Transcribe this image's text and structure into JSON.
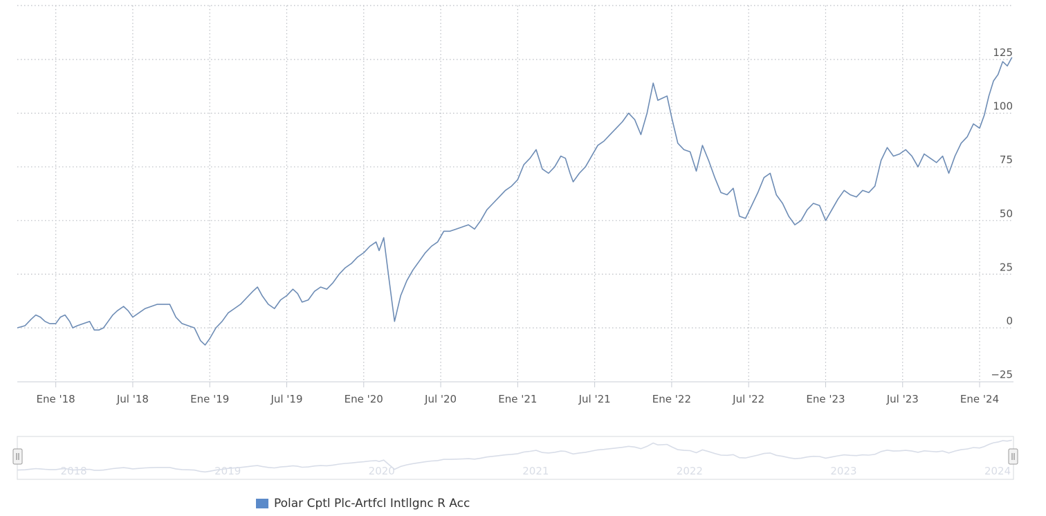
{
  "chart_data": {
    "type": "line",
    "title": "",
    "xlabel": "",
    "ylabel": "",
    "ylim": [
      -25,
      140
    ],
    "y_ticks": [
      -25,
      0,
      25,
      50,
      75,
      100,
      125
    ],
    "x_ticks": [
      {
        "label": "Ene '18",
        "t": 2018.0
      },
      {
        "label": "Jul '18",
        "t": 2018.5
      },
      {
        "label": "Ene '19",
        "t": 2019.0
      },
      {
        "label": "Jul '19",
        "t": 2019.5
      },
      {
        "label": "Ene '20",
        "t": 2020.0
      },
      {
        "label": "Jul '20",
        "t": 2020.5
      },
      {
        "label": "Ene '21",
        "t": 2021.0
      },
      {
        "label": "Jul '21",
        "t": 2021.5
      },
      {
        "label": "Ene '22",
        "t": 2022.0
      },
      {
        "label": "Jul '22",
        "t": 2022.5
      },
      {
        "label": "Ene '23",
        "t": 2023.0
      },
      {
        "label": "Jul '23",
        "t": 2023.5
      },
      {
        "label": "Ene '24",
        "t": 2024.0
      }
    ],
    "x_range": [
      2017.75,
      2024.22
    ],
    "navigator_labels": [
      "2018",
      "2019",
      "2020",
      "2021",
      "2022",
      "2023",
      "2024"
    ],
    "grid": true,
    "legend_position": "bottom-left",
    "series": [
      {
        "name": "Polar Cptl Plc-Artfcl Intllgnc R Acc",
        "color": "#6d8cb5",
        "points": [
          [
            2017.75,
            0
          ],
          [
            2017.8,
            1
          ],
          [
            2017.84,
            4
          ],
          [
            2017.87,
            6
          ],
          [
            2017.9,
            5
          ],
          [
            2017.93,
            3
          ],
          [
            2017.96,
            2
          ],
          [
            2018.0,
            2
          ],
          [
            2018.03,
            5
          ],
          [
            2018.06,
            6
          ],
          [
            2018.09,
            3
          ],
          [
            2018.11,
            0
          ],
          [
            2018.14,
            1
          ],
          [
            2018.18,
            2
          ],
          [
            2018.22,
            3
          ],
          [
            2018.25,
            -1
          ],
          [
            2018.28,
            -1
          ],
          [
            2018.31,
            0
          ],
          [
            2018.34,
            3
          ],
          [
            2018.37,
            6
          ],
          [
            2018.4,
            8
          ],
          [
            2018.44,
            10
          ],
          [
            2018.47,
            8
          ],
          [
            2018.5,
            5
          ],
          [
            2018.54,
            7
          ],
          [
            2018.58,
            9
          ],
          [
            2018.62,
            10
          ],
          [
            2018.66,
            11
          ],
          [
            2018.7,
            11
          ],
          [
            2018.74,
            11
          ],
          [
            2018.78,
            5
          ],
          [
            2018.82,
            2
          ],
          [
            2018.86,
            1
          ],
          [
            2018.9,
            0
          ],
          [
            2018.94,
            -6
          ],
          [
            2018.97,
            -8
          ],
          [
            2019.0,
            -5
          ],
          [
            2019.04,
            0
          ],
          [
            2019.08,
            3
          ],
          [
            2019.12,
            7
          ],
          [
            2019.16,
            9
          ],
          [
            2019.2,
            11
          ],
          [
            2019.24,
            14
          ],
          [
            2019.28,
            17
          ],
          [
            2019.31,
            19
          ],
          [
            2019.34,
            15
          ],
          [
            2019.38,
            11
          ],
          [
            2019.42,
            9
          ],
          [
            2019.46,
            13
          ],
          [
            2019.5,
            15
          ],
          [
            2019.54,
            18
          ],
          [
            2019.57,
            16
          ],
          [
            2019.6,
            12
          ],
          [
            2019.64,
            13
          ],
          [
            2019.68,
            17
          ],
          [
            2019.72,
            19
          ],
          [
            2019.76,
            18
          ],
          [
            2019.8,
            21
          ],
          [
            2019.84,
            25
          ],
          [
            2019.88,
            28
          ],
          [
            2019.92,
            30
          ],
          [
            2019.96,
            33
          ],
          [
            2020.0,
            35
          ],
          [
            2020.04,
            38
          ],
          [
            2020.08,
            40
          ],
          [
            2020.1,
            36
          ],
          [
            2020.13,
            42
          ],
          [
            2020.16,
            25
          ],
          [
            2020.2,
            3
          ],
          [
            2020.24,
            15
          ],
          [
            2020.28,
            22
          ],
          [
            2020.32,
            27
          ],
          [
            2020.36,
            31
          ],
          [
            2020.4,
            35
          ],
          [
            2020.44,
            38
          ],
          [
            2020.48,
            40
          ],
          [
            2020.52,
            45
          ],
          [
            2020.56,
            45
          ],
          [
            2020.6,
            46
          ],
          [
            2020.64,
            47
          ],
          [
            2020.68,
            48
          ],
          [
            2020.72,
            46
          ],
          [
            2020.76,
            50
          ],
          [
            2020.8,
            55
          ],
          [
            2020.84,
            58
          ],
          [
            2020.88,
            61
          ],
          [
            2020.92,
            64
          ],
          [
            2020.96,
            66
          ],
          [
            2021.0,
            69
          ],
          [
            2021.04,
            76
          ],
          [
            2021.08,
            79
          ],
          [
            2021.12,
            83
          ],
          [
            2021.16,
            74
          ],
          [
            2021.2,
            72
          ],
          [
            2021.24,
            75
          ],
          [
            2021.28,
            80
          ],
          [
            2021.31,
            79
          ],
          [
            2021.34,
            72
          ],
          [
            2021.36,
            68
          ],
          [
            2021.4,
            72
          ],
          [
            2021.44,
            75
          ],
          [
            2021.48,
            80
          ],
          [
            2021.52,
            85
          ],
          [
            2021.56,
            87
          ],
          [
            2021.6,
            90
          ],
          [
            2021.64,
            93
          ],
          [
            2021.68,
            96
          ],
          [
            2021.72,
            100
          ],
          [
            2021.76,
            97
          ],
          [
            2021.8,
            90
          ],
          [
            2021.84,
            100
          ],
          [
            2021.88,
            114
          ],
          [
            2021.91,
            106
          ],
          [
            2021.94,
            107
          ],
          [
            2021.97,
            108
          ],
          [
            2022.0,
            98
          ],
          [
            2022.04,
            86
          ],
          [
            2022.08,
            83
          ],
          [
            2022.12,
            82
          ],
          [
            2022.16,
            73
          ],
          [
            2022.2,
            85
          ],
          [
            2022.24,
            78
          ],
          [
            2022.28,
            70
          ],
          [
            2022.32,
            63
          ],
          [
            2022.36,
            62
          ],
          [
            2022.4,
            65
          ],
          [
            2022.44,
            52
          ],
          [
            2022.48,
            51
          ],
          [
            2022.52,
            57
          ],
          [
            2022.56,
            63
          ],
          [
            2022.6,
            70
          ],
          [
            2022.64,
            72
          ],
          [
            2022.68,
            62
          ],
          [
            2022.72,
            58
          ],
          [
            2022.76,
            52
          ],
          [
            2022.8,
            48
          ],
          [
            2022.84,
            50
          ],
          [
            2022.88,
            55
          ],
          [
            2022.92,
            58
          ],
          [
            2022.96,
            57
          ],
          [
            2023.0,
            50
          ],
          [
            2023.04,
            55
          ],
          [
            2023.08,
            60
          ],
          [
            2023.12,
            64
          ],
          [
            2023.16,
            62
          ],
          [
            2023.2,
            61
          ],
          [
            2023.24,
            64
          ],
          [
            2023.28,
            63
          ],
          [
            2023.32,
            66
          ],
          [
            2023.36,
            78
          ],
          [
            2023.4,
            84
          ],
          [
            2023.44,
            80
          ],
          [
            2023.48,
            81
          ],
          [
            2023.52,
            83
          ],
          [
            2023.56,
            80
          ],
          [
            2023.6,
            75
          ],
          [
            2023.64,
            81
          ],
          [
            2023.68,
            79
          ],
          [
            2023.72,
            77
          ],
          [
            2023.76,
            80
          ],
          [
            2023.8,
            72
          ],
          [
            2023.84,
            80
          ],
          [
            2023.88,
            86
          ],
          [
            2023.92,
            89
          ],
          [
            2023.96,
            95
          ],
          [
            2024.0,
            93
          ],
          [
            2024.03,
            99
          ],
          [
            2024.06,
            108
          ],
          [
            2024.09,
            115
          ],
          [
            2024.12,
            118
          ],
          [
            2024.15,
            124
          ],
          [
            2024.18,
            122
          ],
          [
            2024.21,
            126
          ]
        ]
      }
    ]
  },
  "legend": {
    "label": "Polar Cptl Plc-Artfcl Intllgnc R Acc",
    "color": "#5b8ac9"
  }
}
